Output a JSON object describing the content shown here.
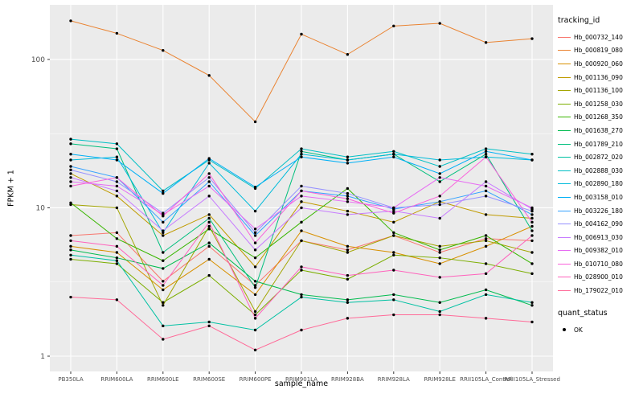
{
  "chart_data": {
    "type": "line",
    "title": "",
    "xlabel": "sample_name",
    "ylabel": "FPKM + 1",
    "yscale": "log10",
    "panel_bg": "#EBEBEB",
    "grid_color": "#FFFFFF",
    "tick_color": "#4D4D4D",
    "point_color": "#000000",
    "ylim_log": [
      -0.103,
      2.368
    ],
    "y_ticks": [
      {
        "label": "1",
        "value": 1
      },
      {
        "label": "10",
        "value": 10
      },
      {
        "label": "100",
        "value": 100
      }
    ],
    "y_minor": [
      3.162,
      31.62
    ],
    "x": [
      "PB350LA",
      "RRIM600LA",
      "RRIM600LE",
      "RRIM600SE",
      "RRIM600PE",
      "RRIM901LA",
      "RRIM928BA",
      "RRIM928LA",
      "RRIM928LE",
      "RRII105LA_Control",
      "RRII105LA_Stressed"
    ],
    "legend_title": "tracking_id",
    "series": [
      {
        "name": "Hb_000732_140",
        "color": "#F8766D",
        "values": [
          6.5,
          6.8,
          3.2,
          5.5,
          3.0,
          6.0,
          5.2,
          6.5,
          5.0,
          6.2,
          6.0
        ]
      },
      {
        "name": "Hb_000819_080",
        "color": "#EA8331",
        "values": [
          182,
          150,
          115,
          78,
          38,
          148,
          108,
          168,
          175,
          130,
          138
        ]
      },
      {
        "name": "Hb_000920_060",
        "color": "#D89000",
        "values": [
          5.5,
          5.0,
          2.8,
          4.5,
          2.6,
          7.0,
          5.5,
          5.0,
          4.2,
          5.5,
          7.5
        ]
      },
      {
        "name": "Hb_001136_090",
        "color": "#C09B00",
        "values": [
          17,
          12,
          6.5,
          9.0,
          4.0,
          11,
          9.5,
          8.0,
          11,
          9.0,
          8.5
        ]
      },
      {
        "name": "Hb_001136_100",
        "color": "#A3A500",
        "values": [
          10.5,
          10,
          2.2,
          7.5,
          2.0,
          6.0,
          5.0,
          6.5,
          5.5,
          6.0,
          5.0
        ]
      },
      {
        "name": "Hb_001258_030",
        "color": "#7CAE00",
        "values": [
          4.5,
          4.2,
          2.3,
          3.5,
          1.9,
          3.8,
          3.3,
          4.8,
          4.6,
          4.2,
          3.6
        ]
      },
      {
        "name": "Hb_001268_350",
        "color": "#39B600",
        "values": [
          10.8,
          6.2,
          4.4,
          7.2,
          4.6,
          8.0,
          13.5,
          6.8,
          5.2,
          6.5,
          4.2
        ]
      },
      {
        "name": "Hb_001638_270",
        "color": "#00BB4E",
        "values": [
          5.2,
          4.6,
          3.9,
          5.8,
          3.2,
          2.6,
          2.4,
          2.6,
          2.3,
          2.8,
          2.2
        ]
      },
      {
        "name": "Hb_001789_210",
        "color": "#00BF7D",
        "values": [
          27,
          25,
          5.0,
          8.5,
          2.9,
          24,
          21,
          23,
          15,
          23,
          7.0
        ]
      },
      {
        "name": "Hb_002872_020",
        "color": "#00C1A3",
        "values": [
          4.8,
          4.4,
          1.6,
          1.7,
          1.5,
          2.5,
          2.3,
          2.4,
          2.0,
          2.6,
          2.3
        ]
      },
      {
        "name": "Hb_002888_030",
        "color": "#00BFC4",
        "values": [
          29,
          27,
          13,
          21,
          13.5,
          25,
          22,
          24,
          19,
          25,
          23
        ]
      },
      {
        "name": "Hb_002890_180",
        "color": "#00BBDA",
        "values": [
          21,
          22,
          6.8,
          20,
          9.5,
          23,
          21,
          23,
          21,
          22,
          21
        ]
      },
      {
        "name": "Hb_003158_010",
        "color": "#00B0F6",
        "values": [
          23,
          21,
          12.5,
          21.5,
          13.8,
          22,
          20,
          22,
          17,
          24,
          21
        ]
      },
      {
        "name": "Hb_003226_180",
        "color": "#35A2FF",
        "values": [
          19,
          16,
          8.0,
          15,
          6.5,
          13,
          12,
          9.8,
          11,
          13,
          9.0
        ]
      },
      {
        "name": "Hb_004162_090",
        "color": "#9590FF",
        "values": [
          18,
          15,
          9.2,
          16,
          6.8,
          14,
          12.5,
          10,
          10.5,
          12,
          9.5
        ]
      },
      {
        "name": "Hb_006913_030",
        "color": "#C77CFF",
        "values": [
          16,
          13,
          7.0,
          12,
          5.2,
          10,
          9.0,
          9.5,
          8.5,
          15,
          9.8
        ]
      },
      {
        "name": "Hb_009382_010",
        "color": "#E76BF3",
        "values": [
          15,
          14,
          9.0,
          14,
          7.2,
          12,
          11,
          10,
          16,
          14,
          10
        ]
      },
      {
        "name": "Hb_010710_080",
        "color": "#FA62DB",
        "values": [
          14,
          16,
          8.8,
          17,
          5.8,
          13,
          11.5,
          9.2,
          12,
          22,
          8.0
        ]
      },
      {
        "name": "Hb_028900_010",
        "color": "#FF62BC",
        "values": [
          6.0,
          5.5,
          3.0,
          8.0,
          1.8,
          4.0,
          3.5,
          3.8,
          3.4,
          3.6,
          6.5
        ]
      },
      {
        "name": "Hb_179022_010",
        "color": "#FF6A98",
        "values": [
          2.5,
          2.4,
          1.3,
          1.6,
          1.1,
          1.5,
          1.8,
          1.9,
          1.9,
          1.8,
          1.7
        ]
      }
    ],
    "quant_legend": {
      "title": "quant_status",
      "items": [
        {
          "label": "OK",
          "marker": "point",
          "color": "#000000"
        }
      ]
    }
  }
}
